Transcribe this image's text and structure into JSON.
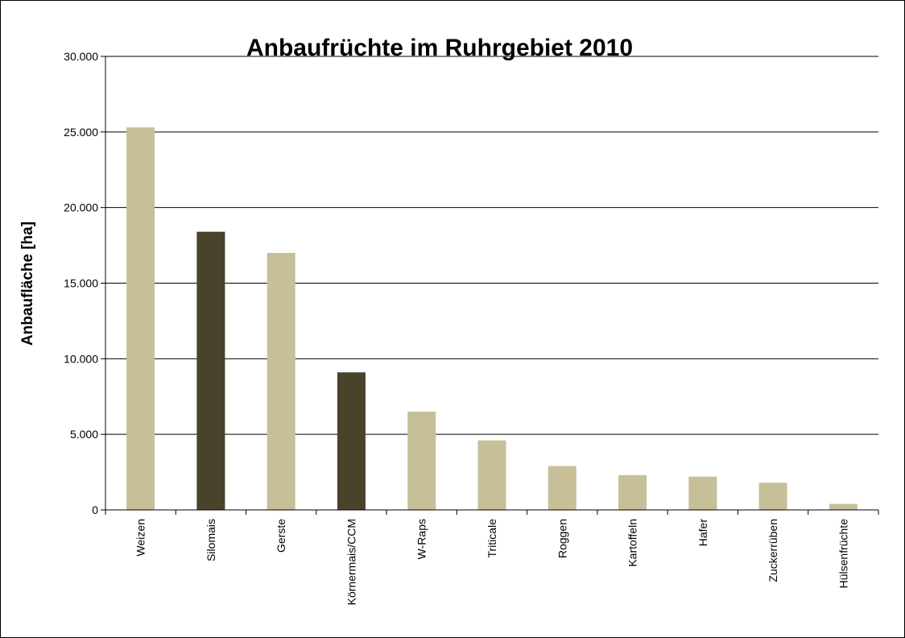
{
  "chart_data": {
    "type": "bar",
    "title": "Anbaufrüchte  im Ruhrgebiet 2010",
    "xlabel": "",
    "ylabel": "Anbaufläche [ha]",
    "ylim": [
      0,
      30000
    ],
    "yticks": [
      0,
      5000,
      10000,
      15000,
      20000,
      25000,
      30000
    ],
    "ytick_labels": [
      "0",
      "5.000",
      "10.000",
      "15.000",
      "20.000",
      "25.000",
      "30.000"
    ],
    "grid": true,
    "legend": "none",
    "categories": [
      "Weizen",
      "Silomais",
      "Gerste",
      "Körnermais/CCM",
      "W-Raps",
      "Triticale",
      "Roggen",
      "Kartoffeln",
      "Hafer",
      "Zuckerrüben",
      "Hülsenfrüchte"
    ],
    "values": [
      25300,
      18400,
      17000,
      9100,
      6500,
      4600,
      2900,
      2300,
      2200,
      1800,
      400
    ],
    "colors": [
      "#c6bf98",
      "#4a432c",
      "#c6bf98",
      "#4a432c",
      "#c6bf98",
      "#c6bf98",
      "#c6bf98",
      "#c6bf98",
      "#c6bf98",
      "#c6bf98",
      "#c6bf98"
    ]
  }
}
